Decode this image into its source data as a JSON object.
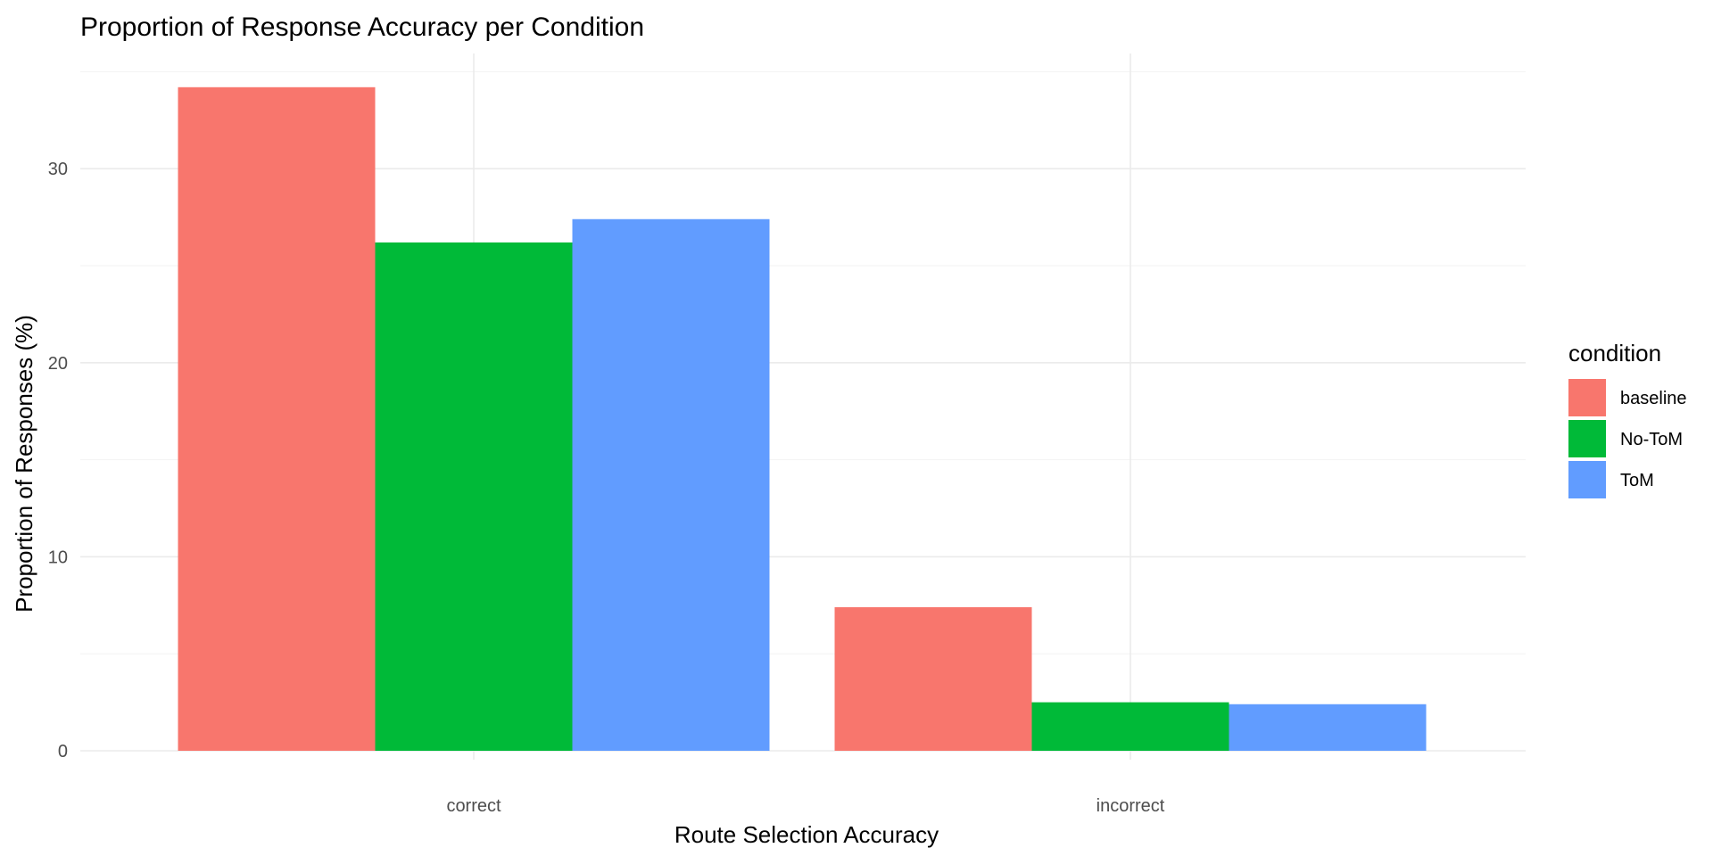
{
  "chart_data": {
    "type": "bar",
    "title": "Proportion of Response Accuracy per Condition",
    "xlabel": "Route Selection Accuracy",
    "ylabel": "Proportion of Responses (%)",
    "categories": [
      "correct",
      "incorrect"
    ],
    "ylim": [
      0,
      35
    ],
    "yticks": [
      0,
      10,
      20,
      30
    ],
    "grid": true,
    "legend": {
      "title": "condition",
      "placement": "right"
    },
    "series": [
      {
        "name": "baseline",
        "color": "#F8766D",
        "values": [
          34.2,
          7.4
        ]
      },
      {
        "name": "No-ToM",
        "color": "#00BA38",
        "values": [
          26.2,
          2.5
        ]
      },
      {
        "name": "ToM",
        "color": "#619CFF",
        "values": [
          27.4,
          2.4
        ]
      }
    ]
  }
}
